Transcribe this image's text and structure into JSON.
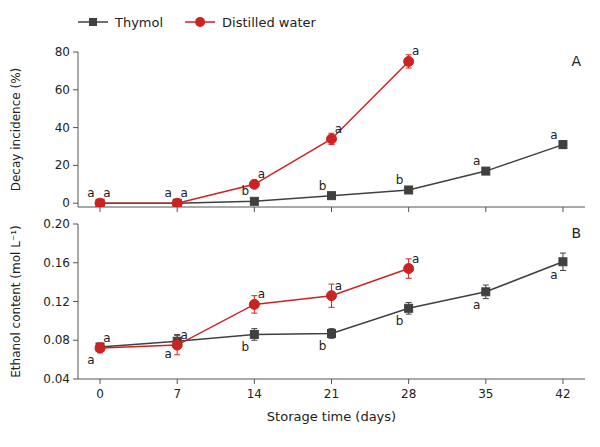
{
  "chart_data": [
    {
      "type": "line",
      "title": "A",
      "ylabel": "Decay incidence (%)",
      "xlim": [
        -2,
        44
      ],
      "xticks": [
        0,
        7,
        14,
        21,
        28,
        35,
        42
      ],
      "ylim": [
        -2,
        80
      ],
      "yticks": [
        0,
        20,
        40,
        60,
        80
      ],
      "legend": "top",
      "tick_labels": "y",
      "series": [
        {
          "name": "Thymol",
          "color": "#404040",
          "marker": "square",
          "x": [
            0,
            7,
            14,
            21,
            28,
            35,
            42
          ],
          "values": [
            0,
            0,
            1,
            4,
            7,
            17,
            31
          ],
          "errors": [
            0.3,
            0.3,
            0.5,
            0.8,
            1.0,
            1.5,
            2.0
          ],
          "annotations": [
            {
              "x": 0,
              "y": 0,
              "text": "a"
            },
            {
              "x": 7,
              "y": 0,
              "text": "a"
            },
            {
              "x": 14,
              "y": 1,
              "text": "b"
            },
            {
              "x": 21,
              "y": 4,
              "text": "b"
            },
            {
              "x": 28,
              "y": 7,
              "text": "b"
            },
            {
              "x": 35,
              "y": 17,
              "text": "a"
            },
            {
              "x": 42,
              "y": 31,
              "text": "a"
            }
          ]
        },
        {
          "name": "Distilled water",
          "color": "#cc2222",
          "marker": "circle",
          "x": [
            0,
            7,
            14,
            21,
            28
          ],
          "values": [
            0,
            0,
            10,
            34,
            75
          ],
          "errors": [
            0.3,
            0.3,
            1.5,
            3.0,
            3.5
          ],
          "annotations": [
            {
              "x": 0,
              "y": 0,
              "text": "a"
            },
            {
              "x": 7,
              "y": 0,
              "text": "a"
            },
            {
              "x": 14,
              "y": 10,
              "text": "a"
            },
            {
              "x": 21,
              "y": 34,
              "text": "a"
            },
            {
              "x": 28,
              "y": 75,
              "text": "a"
            }
          ]
        }
      ]
    },
    {
      "type": "line",
      "title": "B",
      "ylabel": "Ethanol content (mol L⁻¹)",
      "xlabel": "Storage time (days)",
      "xlim": [
        -2,
        44
      ],
      "xticks": [
        0,
        7,
        14,
        21,
        28,
        35,
        42
      ],
      "ylim": [
        0.04,
        0.2
      ],
      "yticks": [
        0.04,
        0.08,
        0.12,
        0.16,
        {
          "value": 0.2,
          "label": "0.20"
        }
      ],
      "series": [
        {
          "color": "#404040",
          "marker": "square",
          "x": [
            0,
            7,
            14,
            21,
            28,
            35,
            42
          ],
          "values": [
            0.073,
            0.079,
            0.086,
            0.087,
            0.113,
            0.13,
            0.161
          ],
          "errors": [
            0.004,
            0.007,
            0.006,
            0.005,
            0.006,
            0.007,
            0.009
          ],
          "annotations": [
            {
              "x": 0,
              "y": 0.073,
              "text": "a"
            },
            {
              "x": 7,
              "y": 0.079,
              "text": "a"
            },
            {
              "x": 14,
              "y": 0.086,
              "text": "b"
            },
            {
              "x": 21,
              "y": 0.087,
              "text": "b"
            },
            {
              "x": 28,
              "y": 0.113,
              "text": "b"
            },
            {
              "x": 35,
              "y": 0.13,
              "text": "a"
            },
            {
              "x": 42,
              "y": 0.161,
              "text": "a"
            }
          ]
        },
        {
          "color": "#cc2222",
          "marker": "circle",
          "x": [
            0,
            7,
            14,
            21,
            28
          ],
          "values": [
            0.072,
            0.075,
            0.117,
            0.126,
            0.154
          ],
          "errors": [
            0.005,
            0.01,
            0.009,
            0.012,
            0.01
          ],
          "annotations": [
            {
              "x": 0,
              "y": 0.072,
              "text": "a"
            },
            {
              "x": 7,
              "y": 0.075,
              "text": "a"
            },
            {
              "x": 14,
              "y": 0.117,
              "text": "a"
            },
            {
              "x": 21,
              "y": 0.126,
              "text": "a"
            },
            {
              "x": 28,
              "y": 0.154,
              "text": "a"
            }
          ]
        }
      ]
    }
  ]
}
